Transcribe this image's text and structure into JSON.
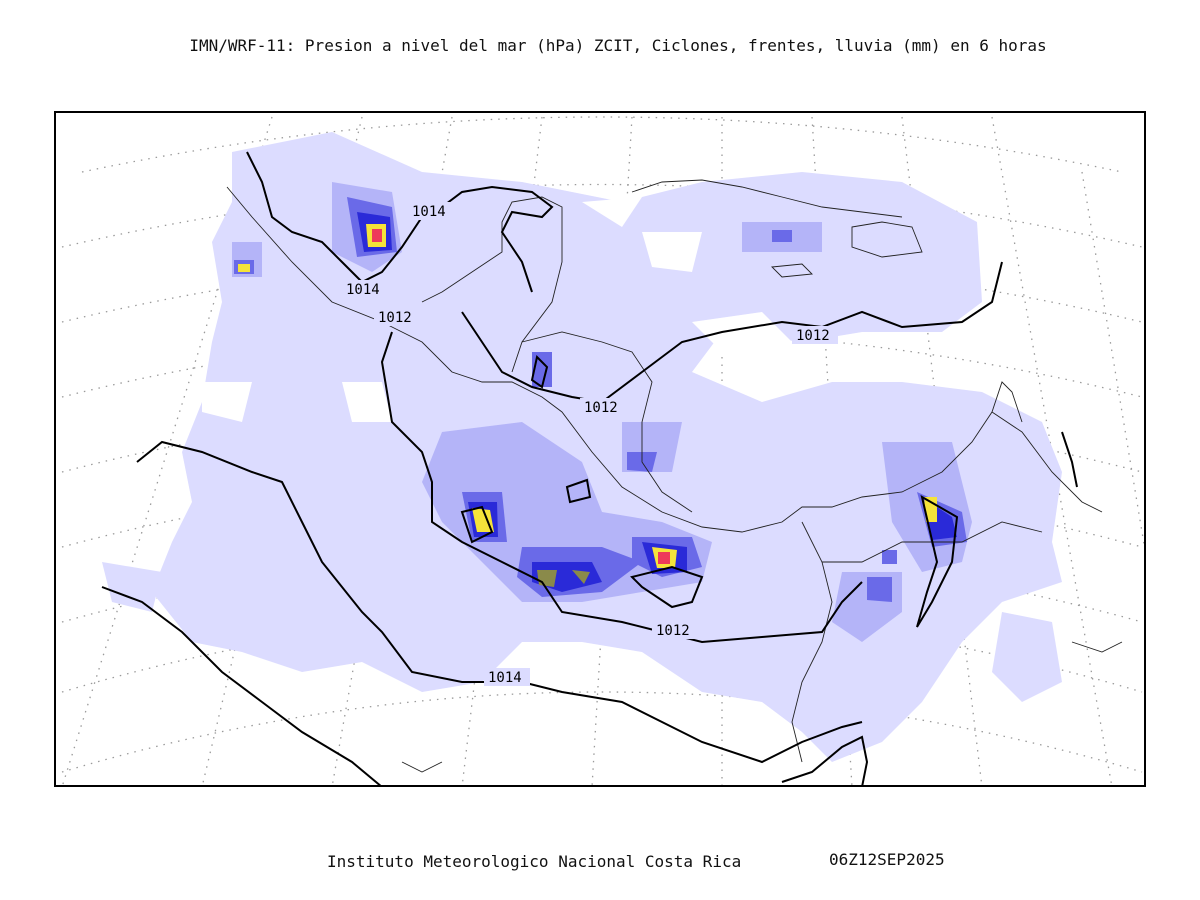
{
  "header": {
    "title": "IMN/WRF-11: Presion a nivel del mar (hPa) ZCIT, Ciclones, frentes, lluvia (mm) en 6 horas"
  },
  "map": {
    "isobar_labels": [
      "1014",
      "1014",
      "1012",
      "1012",
      "1012",
      "1012",
      "1014"
    ],
    "colors": {
      "rain_light": "#dcdcff",
      "rain_mid": "#b4b4f8",
      "rain_blue": "#6a6ae8",
      "rain_deep": "#2a2ad8",
      "rain_olive": "#8a8a4a",
      "rain_yellow": "#f5e33a",
      "rain_red": "#ee3a5a",
      "isobar": "#000000",
      "coast": "#222222",
      "grid": "#9a9a9a"
    }
  },
  "footer": {
    "institution": "Instituto Meteorologico Nacional Costa Rica",
    "timestamp": "06Z12SEP2025"
  }
}
